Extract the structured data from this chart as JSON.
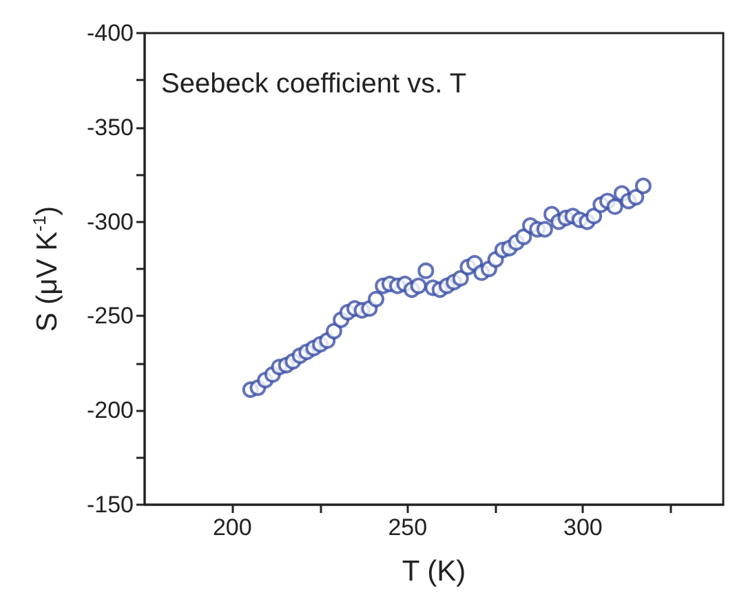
{
  "chart_data": {
    "type": "scatter",
    "title": "Seebeck coefficient vs. T",
    "xlabel": "T (K)",
    "ylabel": "S (μV K$^{-1}$)",
    "xlim": [
      175,
      340
    ],
    "ylim": [
      -150,
      -400
    ],
    "xticks": [
      200,
      {
        "value": 225,
        "label": null
      },
      250,
      {
        "value": 275,
        "label": null
      },
      300,
      {
        "value": 325,
        "label": null
      }
    ],
    "yticks": [
      -400,
      {
        "value": -375,
        "label": null
      },
      -350,
      {
        "value": -325,
        "label": null
      },
      -300,
      {
        "value": -275,
        "label": null
      },
      -250,
      {
        "value": -225,
        "label": null
      },
      -200,
      {
        "value": -175,
        "label": null
      },
      -150
    ],
    "marker": "circle",
    "series": [
      {
        "color": "#3a4fa6",
        "x": [
          205.2,
          207.3,
          209.4,
          211.5,
          213.4,
          215.4,
          217.3,
          219.3,
          221.2,
          223.2,
          225.1,
          227.1,
          229,
          231,
          232.9,
          234.9,
          237,
          239.1,
          241,
          243,
          244.9,
          247.1,
          249.2,
          251.2,
          253.1,
          255.2,
          257.2,
          259.2,
          261.2,
          263.2,
          265.1,
          267.2,
          269.1,
          271.1,
          273.2,
          275.1,
          277.1,
          279,
          281,
          283.1,
          285,
          287,
          289.1,
          291.1,
          293.1,
          295.1,
          297.1,
          299.1,
          301.2,
          303.1,
          305.1,
          307,
          309.1,
          311.1,
          313,
          315.1,
          317.2
        ],
        "values": [
          -211,
          -212,
          -216,
          -219,
          -223,
          -224,
          -226,
          -229,
          -231,
          -233,
          -235,
          -237,
          -242,
          -248,
          -252,
          -254,
          -253,
          -254,
          -259,
          -266,
          -267,
          -266,
          -267,
          -264,
          -266,
          -274,
          -265,
          -264,
          -266,
          -268,
          -270,
          -276,
          -278,
          -273,
          -275,
          -280,
          -285,
          -286,
          -289,
          -292,
          -298,
          -296,
          -296,
          -304,
          -300,
          -302,
          -303,
          -301,
          -300,
          -303,
          -309,
          -311,
          -308,
          -315,
          -311,
          -313,
          -319
        ]
      }
    ]
  }
}
